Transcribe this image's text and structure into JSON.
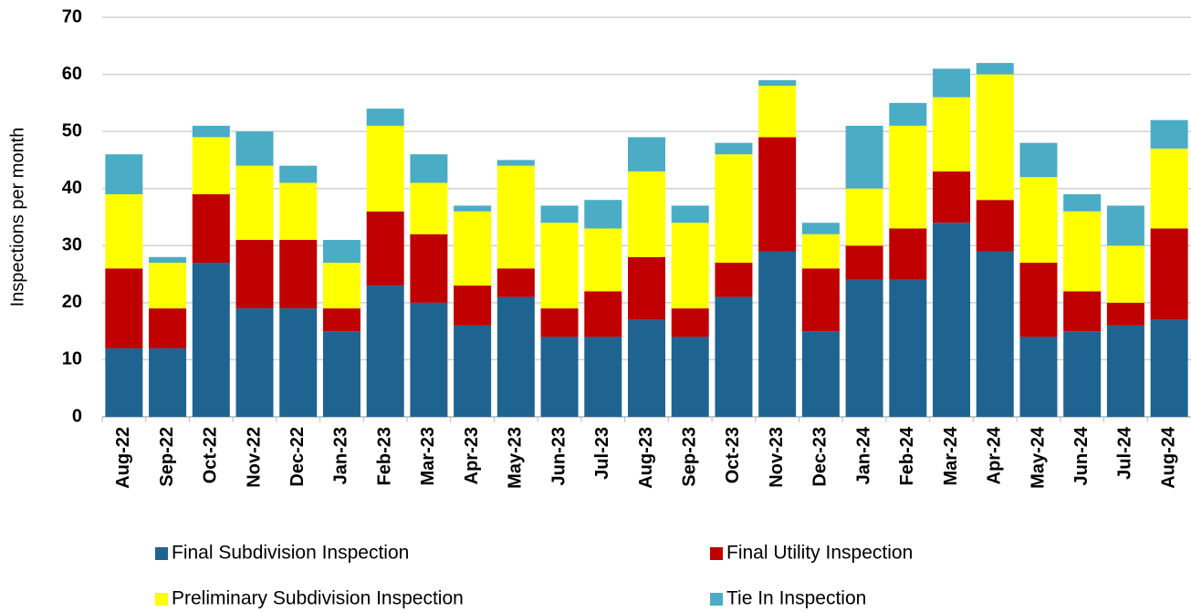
{
  "chart_data": {
    "type": "stacked_bar",
    "y_label": "Inspections per month",
    "categories": [
      "Aug-22",
      "Sep-22",
      "Oct-22",
      "Nov-22",
      "Dec-22",
      "Jan-23",
      "Feb-23",
      "Mar-23",
      "Apr-23",
      "May-23",
      "Jun-23",
      "Jul-23",
      "Aug-23",
      "Sep-23",
      "Oct-23",
      "Nov-23",
      "Dec-23",
      "Jan-24",
      "Feb-24",
      "Mar-24",
      "Apr-24",
      "May-24",
      "Jun-24",
      "Jul-24",
      "Aug-24"
    ],
    "series": [
      {
        "name": "Final Subdivision Inspection",
        "color": "#1f6391",
        "values": [
          12,
          12,
          27,
          19,
          19,
          15,
          23,
          20,
          16,
          21,
          14,
          14,
          17,
          14,
          21,
          29,
          15,
          24,
          24,
          34,
          29,
          14,
          15,
          16,
          17
        ]
      },
      {
        "name": "Final Utility Inspection",
        "color": "#c00000",
        "values": [
          14,
          7,
          12,
          12,
          12,
          4,
          13,
          12,
          7,
          5,
          5,
          8,
          11,
          5,
          6,
          20,
          11,
          6,
          9,
          9,
          9,
          13,
          7,
          4,
          16
        ]
      },
      {
        "name": "Preliminary Subdivision Inspection",
        "color": "#ffff00",
        "values": [
          13,
          8,
          10,
          13,
          10,
          8,
          15,
          9,
          13,
          18,
          15,
          11,
          15,
          15,
          19,
          9,
          6,
          10,
          18,
          13,
          22,
          15,
          14,
          10,
          14
        ]
      },
      {
        "name": "Tie In Inspection",
        "color": "#4bacc6",
        "values": [
          7,
          1,
          2,
          6,
          3,
          4,
          3,
          5,
          1,
          1,
          3,
          5,
          6,
          3,
          2,
          1,
          2,
          11,
          4,
          5,
          2,
          6,
          3,
          7,
          5
        ]
      }
    ],
    "ylim": [
      0,
      70
    ],
    "yticks": [
      0,
      10,
      20,
      30,
      40,
      50,
      60,
      70
    ],
    "grid": true
  }
}
